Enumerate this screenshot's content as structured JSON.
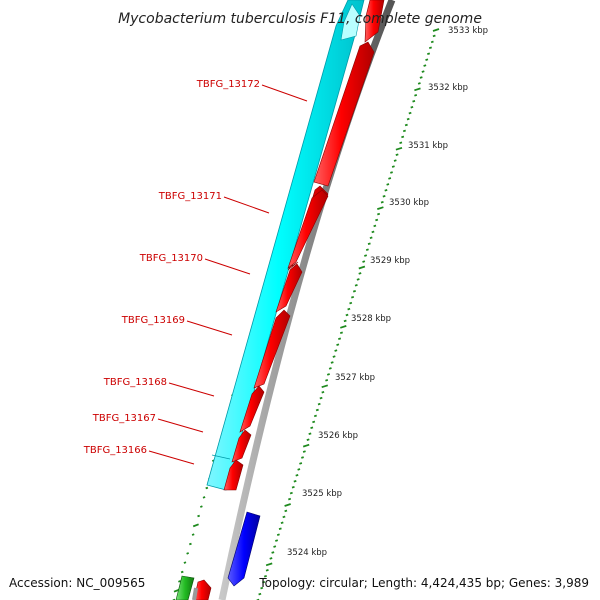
{
  "title": "Mycobacterium tuberculosis F11, complete genome",
  "footer": {
    "accession": "Accession: NC_009565",
    "summary": "Topology: circular; Length: 4,424,435 bp; Genes: 3,989"
  },
  "colors": {
    "forward_track": "#00ffff",
    "forward_track_dark": "#00c8d0",
    "reverse_track": "#ff0000",
    "reverse_track_dark": "#b00000",
    "other_track": "#0000ff",
    "rna_track": "#22bb22",
    "backbone": "#888888",
    "label": "#cc0000",
    "ruler": "#1e8a1e"
  },
  "genes": [
    {
      "name": "TBFG_13172"
    },
    {
      "name": "TBFG_13171"
    },
    {
      "name": "TBFG_13170"
    },
    {
      "name": "TBFG_13169"
    },
    {
      "name": "TBFG_13168"
    },
    {
      "name": "TBFG_13167"
    },
    {
      "name": "TBFG_13166"
    }
  ],
  "ruler": {
    "ticks": [
      "3533 kbp",
      "3532 kbp",
      "3531 kbp",
      "3530 kbp",
      "3529 kbp",
      "3528 kbp",
      "3527 kbp",
      "3526 kbp",
      "3525 kbp",
      "3524 kbp"
    ]
  }
}
